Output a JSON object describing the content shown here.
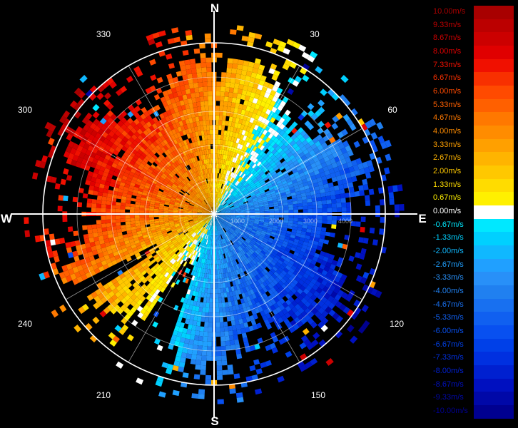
{
  "compass": {
    "north": "N",
    "south": "S",
    "east": "E",
    "west": "W"
  },
  "azimuth_labels": [
    "30",
    "60",
    "120",
    "150",
    "210",
    "240",
    "300",
    "330"
  ],
  "range_labels": [
    "1000",
    "2000",
    "3000",
    "4000"
  ],
  "legend": [
    {
      "label": "10.00m/s",
      "color": "#a80000"
    },
    {
      "label": "9.33m/s",
      "color": "#bb0000"
    },
    {
      "label": "8.67m/s",
      "color": "#cc0000"
    },
    {
      "label": "8.00m/s",
      "color": "#e00000"
    },
    {
      "label": "7.33m/s",
      "color": "#f01000"
    },
    {
      "label": "6.67m/s",
      "color": "#f83000"
    },
    {
      "label": "6.00m/s",
      "color": "#ff4a00"
    },
    {
      "label": "5.33m/s",
      "color": "#ff6000"
    },
    {
      "label": "4.67m/s",
      "color": "#ff7800"
    },
    {
      "label": "4.00m/s",
      "color": "#ff8c00"
    },
    {
      "label": "3.33m/s",
      "color": "#ffa000"
    },
    {
      "label": "2.67m/s",
      "color": "#ffb400"
    },
    {
      "label": "2.00m/s",
      "color": "#ffc800"
    },
    {
      "label": "1.33m/s",
      "color": "#ffdc00"
    },
    {
      "label": "0.67m/s",
      "color": "#fff000"
    },
    {
      "label": "0.00m/s",
      "color": "#ffffff"
    },
    {
      "label": "-0.67m/s",
      "color": "#00e8ff"
    },
    {
      "label": "-1.33m/s",
      "color": "#00d0ff"
    },
    {
      "label": "-2.00m/s",
      "color": "#10b8ff"
    },
    {
      "label": "-2.67m/s",
      "color": "#20a0ff"
    },
    {
      "label": "-3.33m/s",
      "color": "#2890f8"
    },
    {
      "label": "-4.00m/s",
      "color": "#2080f0"
    },
    {
      "label": "-4.67m/s",
      "color": "#1870f0"
    },
    {
      "label": "-5.33m/s",
      "color": "#1060f0"
    },
    {
      "label": "-6.00m/s",
      "color": "#0850f0"
    },
    {
      "label": "-6.67m/s",
      "color": "#0040e8"
    },
    {
      "label": "-7.33m/s",
      "color": "#0030e0"
    },
    {
      "label": "-8.00m/s",
      "color": "#0020d0"
    },
    {
      "label": "-8.67m/s",
      "color": "#0010c0"
    },
    {
      "label": "-9.33m/s",
      "color": "#0008a8"
    },
    {
      "label": "-10.00m/s",
      "color": "#000090"
    }
  ]
}
